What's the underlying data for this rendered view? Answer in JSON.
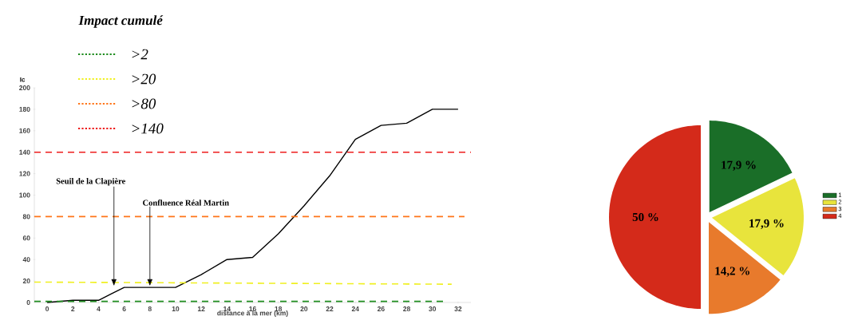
{
  "chart_data": [
    {
      "type": "line",
      "legend_title": "Impact cumulé",
      "xlabel": "distance à la mer (km)",
      "ylabel": "Ic",
      "xlim": [
        -1,
        33
      ],
      "ylim": [
        0,
        200
      ],
      "xticks": [
        0,
        2,
        4,
        6,
        8,
        10,
        12,
        14,
        16,
        18,
        20,
        22,
        24,
        26,
        28,
        30,
        32
      ],
      "yticks": [
        0,
        20,
        40,
        60,
        80,
        100,
        120,
        140,
        160,
        180,
        200
      ],
      "legend": "top left",
      "marker": "none",
      "series": [
        {
          "color": "#000000",
          "line_style": "solid",
          "x": [
            0,
            2,
            4,
            5,
            6,
            10,
            12,
            14,
            16,
            18,
            20,
            22,
            24,
            26,
            28,
            30,
            32
          ],
          "values": [
            0,
            2,
            2,
            8,
            14,
            14,
            26,
            40,
            42,
            64,
            90,
            118,
            152,
            165,
            167,
            180,
            180
          ]
        },
        {
          "name": ">2",
          "color": "#1e8c1e",
          "line_style": "dashed",
          "x": [
            -1,
            31
          ],
          "values": [
            1,
            1
          ]
        },
        {
          "name": ">20",
          "color": "#f0f020",
          "line_style": "dashed",
          "x": [
            -1,
            31.5
          ],
          "values": [
            19,
            17
          ]
        },
        {
          "name": ">80",
          "color": "#ff7518",
          "line_style": "dashed",
          "x": [
            -1,
            32.5
          ],
          "values": [
            80,
            80
          ]
        },
        {
          "name": ">140",
          "color": "#ee1c1c",
          "line_style": "dashed",
          "x": [
            -1,
            33
          ],
          "values": [
            140,
            140
          ]
        }
      ],
      "annotations": [
        {
          "text": "Seuil de la Clapière",
          "x": 5.2,
          "y": 15
        },
        {
          "text": "Confluence Réal Martin",
          "x": 8,
          "y": 15
        }
      ]
    },
    {
      "type": "pie",
      "categories": [
        "1",
        "2",
        "3",
        "4"
      ],
      "values": [
        17.9,
        17.9,
        14.2,
        50
      ],
      "colors": [
        "#1a6e28",
        "#e8e43c",
        "#e87a2c",
        "#d42a1a"
      ],
      "value_labels": [
        "17,9 %",
        "17,9 %",
        "14,2 %",
        "50 %"
      ],
      "legend": "right"
    }
  ]
}
